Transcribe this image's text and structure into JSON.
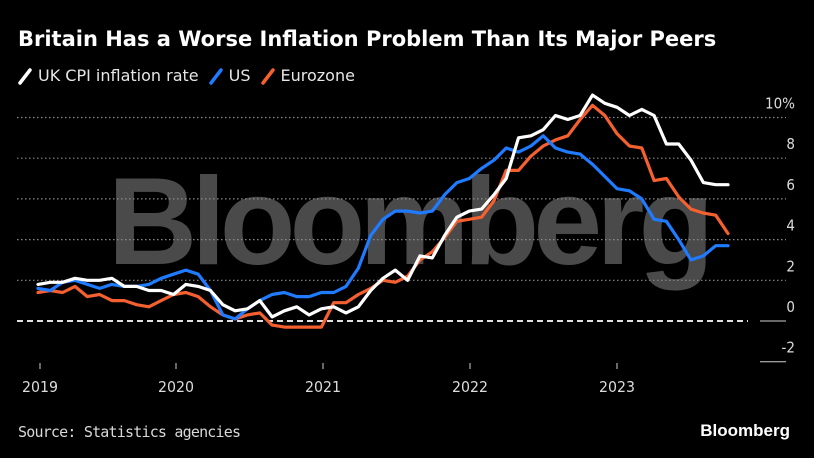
{
  "title": "Britain Has a Worse Inflation Problem Than Its Major Peers",
  "legend": [
    {
      "name": "UK CPI inflation rate",
      "color": "#ffffff"
    },
    {
      "name": "US",
      "color": "#1f7bff"
    },
    {
      "name": "Eurozone",
      "color": "#f4602f"
    }
  ],
  "watermark": "Bloomberg",
  "source": "Source: Statistics agencies",
  "brand": "Bloomberg",
  "chart_data": {
    "type": "line",
    "title": "Britain Has a Worse Inflation Problem Than Its Major Peers",
    "xlabel": "",
    "ylabel": "",
    "x_start": "2019-01",
    "x_end": "2023-09",
    "x_frequency": "monthly",
    "x_ticks": [
      "2019",
      "2020",
      "2021",
      "2022",
      "2023"
    ],
    "y_ticks": [
      "10%",
      "8",
      "6",
      "4",
      "2",
      "0",
      "-2"
    ],
    "y_tick_values": [
      10,
      8,
      6,
      4,
      2,
      0,
      -2
    ],
    "ylim": [
      -2,
      11
    ],
    "grid": true,
    "legend_position": "top-left",
    "series": [
      {
        "name": "UK CPI inflation rate",
        "color": "#ffffff",
        "values": [
          1.8,
          1.9,
          1.9,
          2.1,
          2.0,
          2.0,
          2.1,
          1.7,
          1.7,
          1.5,
          1.5,
          1.3,
          1.8,
          1.7,
          1.5,
          0.8,
          0.5,
          0.6,
          1.0,
          0.2,
          0.5,
          0.7,
          0.3,
          0.6,
          0.7,
          0.4,
          0.7,
          1.5,
          2.1,
          2.5,
          2.0,
          3.2,
          3.1,
          4.2,
          5.1,
          5.4,
          5.5,
          6.2,
          7.0,
          9.0,
          9.1,
          9.4,
          10.1,
          9.9,
          10.1,
          11.1,
          10.7,
          10.5,
          10.1,
          10.4,
          10.1,
          8.7,
          8.7,
          7.9,
          6.8,
          6.7,
          6.7
        ]
      },
      {
        "name": "US",
        "color": "#1f7bff",
        "values": [
          1.6,
          1.5,
          1.9,
          2.0,
          1.8,
          1.6,
          1.8,
          1.7,
          1.7,
          1.8,
          2.1,
          2.3,
          2.5,
          2.3,
          1.5,
          0.3,
          0.1,
          0.6,
          1.0,
          1.3,
          1.4,
          1.2,
          1.2,
          1.4,
          1.4,
          1.7,
          2.6,
          4.2,
          5.0,
          5.4,
          5.4,
          5.3,
          5.4,
          6.2,
          6.8,
          7.0,
          7.5,
          7.9,
          8.5,
          8.3,
          8.6,
          9.1,
          8.5,
          8.3,
          8.2,
          7.7,
          7.1,
          6.5,
          6.4,
          6.0,
          5.0,
          4.9,
          4.0,
          3.0,
          3.2,
          3.7,
          3.7
        ]
      },
      {
        "name": "Eurozone",
        "color": "#f4602f",
        "values": [
          1.4,
          1.5,
          1.4,
          1.7,
          1.2,
          1.3,
          1.0,
          1.0,
          0.8,
          0.7,
          1.0,
          1.3,
          1.4,
          1.2,
          0.7,
          0.3,
          0.1,
          0.3,
          0.4,
          -0.2,
          -0.3,
          -0.3,
          -0.3,
          -0.3,
          0.9,
          0.9,
          1.3,
          1.6,
          2.0,
          1.9,
          2.2,
          3.0,
          3.4,
          4.1,
          4.9,
          5.0,
          5.1,
          5.9,
          7.4,
          7.4,
          8.1,
          8.6,
          8.9,
          9.1,
          9.9,
          10.6,
          10.1,
          9.2,
          8.6,
          8.5,
          6.9,
          7.0,
          6.1,
          5.5,
          5.3,
          5.2,
          4.3
        ]
      }
    ]
  }
}
